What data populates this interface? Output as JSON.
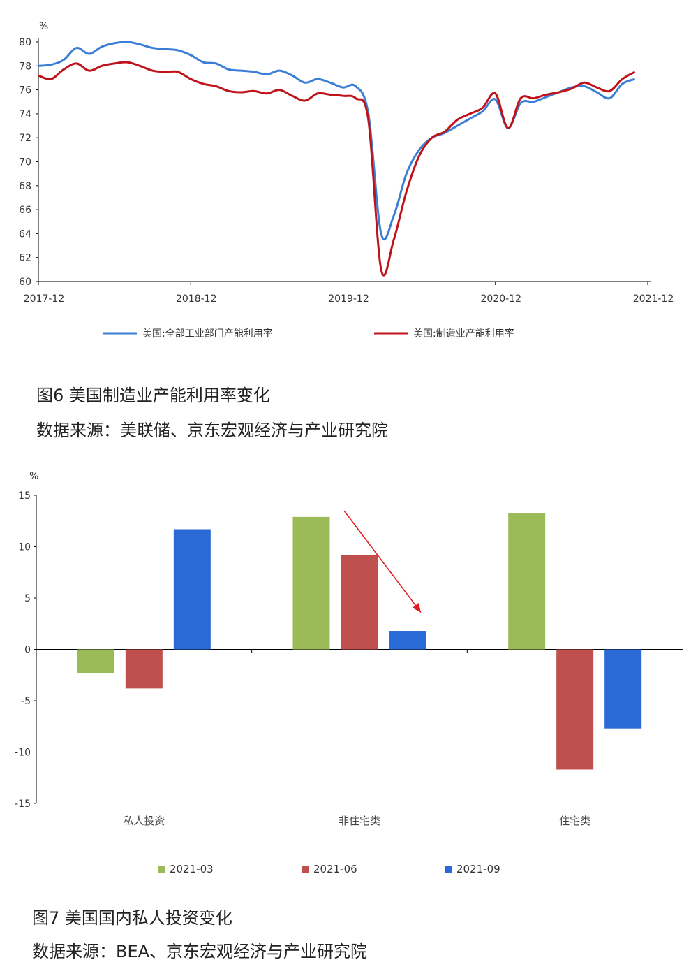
{
  "figure1": {
    "caption": "图6 美国制造业产能利用率变化",
    "source": "数据来源：美联储、京东宏观经济与产业研究院",
    "chart_data": {
      "type": "line",
      "unit_label": "%",
      "ylim": [
        60,
        80
      ],
      "y_ticks": [
        60,
        62,
        64,
        66,
        68,
        70,
        72,
        74,
        76,
        78,
        80
      ],
      "x_ticks": [
        "2017-12",
        "2018-12",
        "2019-12",
        "2020-12",
        "2021-12"
      ],
      "x_tick_values": [
        2017.917,
        2018.917,
        2019.917,
        2020.917,
        2021.917
      ],
      "xlim": [
        2017.917,
        2021.917
      ],
      "legend_position": "bottom",
      "grid": false,
      "series": [
        {
          "name": "美国:全部工业部门产能利用率",
          "color": "#3a7fd5",
          "x": [
            2017.917,
            2018.0,
            2018.083,
            2018.167,
            2018.25,
            2018.333,
            2018.417,
            2018.5,
            2018.583,
            2018.667,
            2018.75,
            2018.833,
            2018.917,
            2019.0,
            2019.083,
            2019.167,
            2019.25,
            2019.333,
            2019.417,
            2019.5,
            2019.583,
            2019.667,
            2019.75,
            2019.833,
            2019.917,
            2020.0,
            2020.083,
            2020.167,
            2020.25,
            2020.333,
            2020.417,
            2020.5,
            2020.583,
            2020.667,
            2020.75,
            2020.833,
            2020.917,
            2021.0,
            2021.083,
            2021.167,
            2021.25,
            2021.333,
            2021.417,
            2021.5,
            2021.583,
            2021.667,
            2021.75,
            2021.833
          ],
          "values": [
            78.0,
            78.1,
            78.5,
            79.5,
            79.0,
            79.6,
            79.9,
            80.0,
            79.8,
            79.5,
            79.4,
            79.3,
            78.9,
            78.3,
            78.2,
            77.7,
            77.6,
            77.5,
            77.3,
            77.6,
            77.2,
            76.6,
            76.9,
            76.6,
            76.2,
            76.3,
            74.0,
            64.0,
            65.5,
            69.0,
            71.0,
            72.0,
            72.4,
            73.0,
            73.6,
            74.2,
            75.2,
            72.8,
            74.9,
            75.0,
            75.4,
            75.8,
            76.2,
            76.3,
            75.8,
            75.3,
            76.5,
            76.9
          ]
        },
        {
          "name": "美国:制造业产能利用率",
          "color": "#c0121b",
          "x": [
            2017.917,
            2018.0,
            2018.083,
            2018.167,
            2018.25,
            2018.333,
            2018.417,
            2018.5,
            2018.583,
            2018.667,
            2018.75,
            2018.833,
            2018.917,
            2019.0,
            2019.083,
            2019.167,
            2019.25,
            2019.333,
            2019.417,
            2019.5,
            2019.583,
            2019.667,
            2019.75,
            2019.833,
            2019.917,
            2020.0,
            2020.083,
            2020.167,
            2020.25,
            2020.333,
            2020.417,
            2020.5,
            2020.583,
            2020.667,
            2020.75,
            2020.833,
            2020.917,
            2021.0,
            2021.083,
            2021.167,
            2021.25,
            2021.333,
            2021.417,
            2021.5,
            2021.583,
            2021.667,
            2021.75,
            2021.833
          ],
          "values": [
            77.2,
            76.9,
            77.7,
            78.2,
            77.6,
            78.0,
            78.2,
            78.3,
            78.0,
            77.6,
            77.5,
            77.5,
            76.9,
            76.5,
            76.3,
            75.9,
            75.8,
            75.9,
            75.7,
            76.0,
            75.5,
            75.1,
            75.7,
            75.6,
            75.5,
            75.3,
            73.5,
            61.0,
            63.5,
            67.5,
            70.5,
            72.0,
            72.5,
            73.5,
            74.0,
            74.5,
            75.7,
            72.8,
            75.3,
            75.3,
            75.6,
            75.8,
            76.1,
            76.6,
            76.2,
            75.9,
            76.9,
            77.5
          ]
        }
      ]
    }
  },
  "figure2": {
    "caption": "图7 美国国内私人投资变化",
    "source": "数据来源：BEA、京东宏观经济与产业研究院",
    "chart_data": {
      "type": "bar",
      "unit_label": "%",
      "ylim": [
        -15,
        15
      ],
      "y_ticks": [
        -15,
        -10,
        -5,
        0,
        5,
        10,
        15
      ],
      "categories": [
        "私人投资",
        "非住宅类",
        "住宅类"
      ],
      "legend_position": "bottom",
      "grid": false,
      "series": [
        {
          "name": "2021-03",
          "color": "#9bbb59",
          "values": [
            -2.3,
            12.9,
            13.3
          ]
        },
        {
          "name": "2021-06",
          "color": "#c0504d",
          "values": [
            -3.8,
            9.2,
            -11.7
          ]
        },
        {
          "name": "2021-09",
          "color": "#2a6ad6",
          "values": [
            11.7,
            1.8,
            -7.7
          ]
        }
      ],
      "annotation": {
        "type": "arrow",
        "color": "#e8191c",
        "from": [
          "非住宅类",
          13.5
        ],
        "to": [
          "非住宅类",
          3.6
        ]
      }
    }
  }
}
